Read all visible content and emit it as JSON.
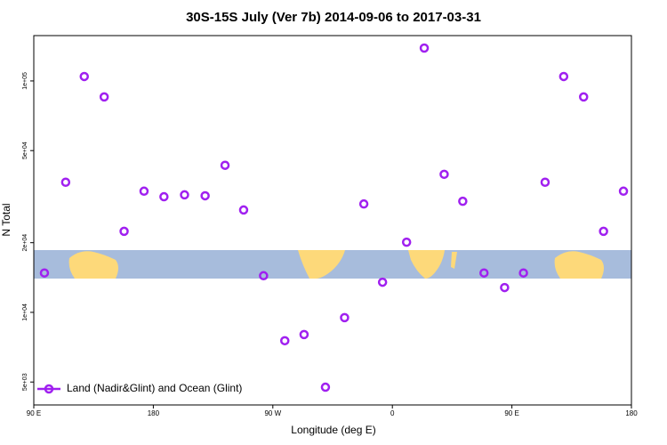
{
  "chart_data": {
    "type": "scatter",
    "title": "30S-15S July (Ver 7b)   2014-09-06 to 2017-03-31",
    "xlabel": "Longitude (deg E)",
    "ylabel": "N Total",
    "xlim": [
      90,
      540
    ],
    "xticks": [
      {
        "value": 90,
        "label": "90 E"
      },
      {
        "value": 180,
        "label": "180"
      },
      {
        "value": 270,
        "label": "90 W"
      },
      {
        "value": 360,
        "label": "0"
      },
      {
        "value": 450,
        "label": "90 E"
      },
      {
        "value": 540,
        "label": "180"
      }
    ],
    "ylim": [
      3980,
      157000
    ],
    "ylog": true,
    "yticks": [
      {
        "value": 5000,
        "label": "5e+03"
      },
      {
        "value": 10000,
        "label": "1e+04"
      },
      {
        "value": 20000,
        "label": "2e+04"
      },
      {
        "value": 50000,
        "label": "5e+04"
      },
      {
        "value": 100000,
        "label": "1e+05"
      }
    ],
    "legend": "bottom-left",
    "series": [
      {
        "name": "Land (Nadir&Glint) and Ocean (Glint)",
        "color": "#a020f0",
        "x": [
          98,
          114,
          128,
          143,
          158,
          173,
          188,
          203.5,
          219,
          234,
          248,
          263,
          279,
          293.5,
          309.6,
          324,
          338.5,
          352.6,
          370.7,
          384,
          399,
          413,
          429,
          444.5,
          458.7,
          475,
          489,
          504,
          519,
          534
        ],
        "values": [
          14800,
          36500,
          104500,
          85300,
          22400,
          33400,
          31600,
          32200,
          31900,
          43200,
          27700,
          14400,
          7540,
          8020,
          4750,
          9490,
          29400,
          13500,
          20100,
          138700,
          39500,
          30200,
          14800,
          12800,
          14800,
          36500,
          104500,
          85300,
          22400,
          33400
        ]
      }
    ]
  }
}
